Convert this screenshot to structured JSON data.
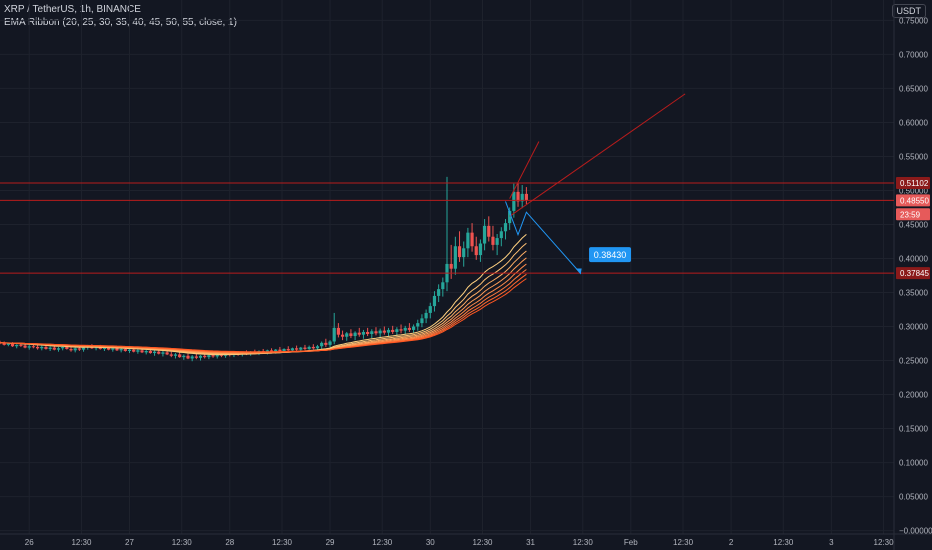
{
  "header": {
    "symbol_line": "XRP / TetherUS, 1h, BINANCE",
    "indicator_line": "EMA Ribbon (20, 25, 30, 35, 40, 45, 50, 55, close, 1)"
  },
  "currency_badge": "USDT",
  "colors": {
    "background": "#131722",
    "grid": "#1e222d",
    "axis_text": "#b2b5be",
    "up_candle": "#26a69a",
    "down_candle": "#ef5350",
    "ribbon_light": "#ffd180",
    "ribbon_dark": "#ff5722",
    "hline": "#b71c1c",
    "projection": "#2196f3",
    "label_red": "#8b1a1a",
    "label_price": "#e65a5a"
  },
  "chart_data": {
    "type": "candlestick",
    "title": "XRP / TetherUS, 1h, BINANCE",
    "y_axis": {
      "ticks": [
        0.75,
        0.7,
        0.65,
        0.6,
        0.55,
        0.5,
        0.45,
        0.4,
        0.35,
        0.3,
        0.25,
        0.2,
        0.15,
        0.1,
        0.05,
        0.0
      ],
      "tick_labels": [
        "0.75000",
        "0.70000",
        "0.65000",
        "0.60000",
        "0.55000",
        "0.50000",
        "0.45000",
        "0.40000",
        "0.35000",
        "0.30000",
        "0.25000",
        "0.20000",
        "0.15000",
        "0.10000",
        "0.05000",
        "−0.00000"
      ],
      "range": [
        -0.005,
        0.78
      ]
    },
    "x_axis": {
      "labels": [
        "26",
        "12:30",
        "27",
        "12:30",
        "28",
        "12:30",
        "29",
        "12:30",
        "30",
        "12:30",
        "31",
        "12:30",
        "Feb",
        "12:30",
        "2",
        "12:30",
        "3",
        "12:30"
      ],
      "hours": [
        0,
        12.5,
        24,
        36.5,
        48,
        60.5,
        72,
        84.5,
        96,
        108.5,
        120,
        132.5,
        144,
        156.5,
        168,
        180.5,
        192,
        204.5
      ],
      "range_hours": [
        -7,
        207
      ]
    },
    "candles_compact": {
      "start_hour": -7,
      "step_hours": 1,
      "comment_free_ohlc": true,
      "ohlc": [
        [
          0.277,
          0.279,
          0.274,
          0.276
        ],
        [
          0.276,
          0.278,
          0.272,
          0.273
        ],
        [
          0.273,
          0.276,
          0.271,
          0.275
        ],
        [
          0.275,
          0.277,
          0.27,
          0.271
        ],
        [
          0.271,
          0.274,
          0.268,
          0.273
        ],
        [
          0.273,
          0.276,
          0.27,
          0.272
        ],
        [
          0.272,
          0.275,
          0.268,
          0.269
        ],
        [
          0.269,
          0.273,
          0.266,
          0.271
        ],
        [
          0.271,
          0.274,
          0.268,
          0.27
        ],
        [
          0.27,
          0.273,
          0.266,
          0.268
        ],
        [
          0.268,
          0.272,
          0.265,
          0.27
        ],
        [
          0.27,
          0.273,
          0.266,
          0.267
        ],
        [
          0.267,
          0.271,
          0.264,
          0.269
        ],
        [
          0.269,
          0.272,
          0.265,
          0.266
        ],
        [
          0.266,
          0.27,
          0.263,
          0.268
        ],
        [
          0.268,
          0.272,
          0.265,
          0.27
        ],
        [
          0.27,
          0.273,
          0.266,
          0.267
        ],
        [
          0.267,
          0.271,
          0.263,
          0.265
        ],
        [
          0.265,
          0.269,
          0.262,
          0.268
        ],
        [
          0.268,
          0.271,
          0.264,
          0.266
        ],
        [
          0.266,
          0.27,
          0.263,
          0.269
        ],
        [
          0.269,
          0.273,
          0.266,
          0.271
        ],
        [
          0.271,
          0.274,
          0.267,
          0.268
        ],
        [
          0.268,
          0.272,
          0.265,
          0.27
        ],
        [
          0.27,
          0.273,
          0.266,
          0.267
        ],
        [
          0.267,
          0.271,
          0.264,
          0.269
        ],
        [
          0.269,
          0.272,
          0.265,
          0.266
        ],
        [
          0.266,
          0.27,
          0.263,
          0.268
        ],
        [
          0.268,
          0.271,
          0.264,
          0.265
        ],
        [
          0.265,
          0.269,
          0.262,
          0.267
        ],
        [
          0.267,
          0.27,
          0.263,
          0.264
        ],
        [
          0.264,
          0.268,
          0.261,
          0.266
        ],
        [
          0.266,
          0.269,
          0.262,
          0.263
        ],
        [
          0.263,
          0.267,
          0.26,
          0.265
        ],
        [
          0.265,
          0.268,
          0.261,
          0.262
        ],
        [
          0.262,
          0.266,
          0.259,
          0.264
        ],
        [
          0.264,
          0.267,
          0.26,
          0.261
        ],
        [
          0.261,
          0.265,
          0.257,
          0.263
        ],
        [
          0.263,
          0.266,
          0.259,
          0.26
        ],
        [
          0.26,
          0.264,
          0.256,
          0.262
        ],
        [
          0.262,
          0.265,
          0.258,
          0.259
        ],
        [
          0.259,
          0.263,
          0.255,
          0.257
        ],
        [
          0.257,
          0.261,
          0.253,
          0.259
        ],
        [
          0.259,
          0.262,
          0.254,
          0.255
        ],
        [
          0.255,
          0.259,
          0.251,
          0.257
        ],
        [
          0.257,
          0.26,
          0.252,
          0.253
        ],
        [
          0.253,
          0.258,
          0.249,
          0.256
        ],
        [
          0.256,
          0.26,
          0.252,
          0.254
        ],
        [
          0.254,
          0.258,
          0.25,
          0.257
        ],
        [
          0.257,
          0.261,
          0.253,
          0.255
        ],
        [
          0.255,
          0.259,
          0.252,
          0.258
        ],
        [
          0.258,
          0.261,
          0.254,
          0.256
        ],
        [
          0.256,
          0.26,
          0.253,
          0.259
        ],
        [
          0.259,
          0.262,
          0.255,
          0.257
        ],
        [
          0.257,
          0.261,
          0.254,
          0.26
        ],
        [
          0.26,
          0.263,
          0.256,
          0.258
        ],
        [
          0.258,
          0.262,
          0.255,
          0.261
        ],
        [
          0.261,
          0.264,
          0.257,
          0.259
        ],
        [
          0.259,
          0.263,
          0.256,
          0.262
        ],
        [
          0.262,
          0.265,
          0.258,
          0.26
        ],
        [
          0.26,
          0.264,
          0.257,
          0.263
        ],
        [
          0.263,
          0.266,
          0.259,
          0.261
        ],
        [
          0.261,
          0.265,
          0.258,
          0.264
        ],
        [
          0.264,
          0.267,
          0.26,
          0.262
        ],
        [
          0.262,
          0.266,
          0.259,
          0.265
        ],
        [
          0.265,
          0.268,
          0.261,
          0.263
        ],
        [
          0.263,
          0.267,
          0.26,
          0.266
        ],
        [
          0.266,
          0.27,
          0.262,
          0.264
        ],
        [
          0.264,
          0.268,
          0.261,
          0.267
        ],
        [
          0.267,
          0.271,
          0.263,
          0.265
        ],
        [
          0.265,
          0.269,
          0.262,
          0.268
        ],
        [
          0.268,
          0.272,
          0.264,
          0.266
        ],
        [
          0.266,
          0.27,
          0.263,
          0.269
        ],
        [
          0.269,
          0.273,
          0.265,
          0.267
        ],
        [
          0.267,
          0.272,
          0.264,
          0.27
        ],
        [
          0.27,
          0.274,
          0.266,
          0.268
        ],
        [
          0.268,
          0.273,
          0.265,
          0.271
        ],
        [
          0.271,
          0.278,
          0.267,
          0.276
        ],
        [
          0.276,
          0.282,
          0.27,
          0.273
        ],
        [
          0.273,
          0.28,
          0.269,
          0.278
        ],
        [
          0.278,
          0.32,
          0.274,
          0.298
        ],
        [
          0.298,
          0.305,
          0.284,
          0.288
        ],
        [
          0.288,
          0.294,
          0.28,
          0.285
        ],
        [
          0.285,
          0.292,
          0.279,
          0.29
        ],
        [
          0.29,
          0.296,
          0.283,
          0.286
        ],
        [
          0.286,
          0.293,
          0.28,
          0.291
        ],
        [
          0.291,
          0.298,
          0.285,
          0.288
        ],
        [
          0.288,
          0.295,
          0.282,
          0.292
        ],
        [
          0.292,
          0.298,
          0.286,
          0.289
        ],
        [
          0.289,
          0.296,
          0.283,
          0.293
        ],
        [
          0.293,
          0.299,
          0.287,
          0.29
        ],
        [
          0.29,
          0.297,
          0.284,
          0.294
        ],
        [
          0.294,
          0.3,
          0.288,
          0.291
        ],
        [
          0.291,
          0.298,
          0.285,
          0.295
        ],
        [
          0.295,
          0.301,
          0.289,
          0.292
        ],
        [
          0.292,
          0.299,
          0.286,
          0.296
        ],
        [
          0.296,
          0.303,
          0.29,
          0.294
        ],
        [
          0.294,
          0.301,
          0.288,
          0.298
        ],
        [
          0.298,
          0.305,
          0.292,
          0.295
        ],
        [
          0.295,
          0.303,
          0.29,
          0.3
        ],
        [
          0.3,
          0.31,
          0.294,
          0.305
        ],
        [
          0.305,
          0.318,
          0.299,
          0.312
        ],
        [
          0.312,
          0.325,
          0.305,
          0.32
        ],
        [
          0.32,
          0.335,
          0.312,
          0.33
        ],
        [
          0.33,
          0.352,
          0.322,
          0.345
        ],
        [
          0.345,
          0.362,
          0.336,
          0.355
        ],
        [
          0.355,
          0.372,
          0.344,
          0.365
        ],
        [
          0.365,
          0.52,
          0.352,
          0.392
        ],
        [
          0.392,
          0.42,
          0.37,
          0.385
        ],
        [
          0.385,
          0.432,
          0.376,
          0.418
        ],
        [
          0.418,
          0.44,
          0.395,
          0.402
        ],
        [
          0.402,
          0.425,
          0.388,
          0.415
        ],
        [
          0.415,
          0.445,
          0.402,
          0.438
        ],
        [
          0.438,
          0.452,
          0.41,
          0.418
        ],
        [
          0.418,
          0.432,
          0.398,
          0.405
        ],
        [
          0.405,
          0.428,
          0.395,
          0.422
        ],
        [
          0.422,
          0.458,
          0.412,
          0.448
        ],
        [
          0.448,
          0.462,
          0.425,
          0.432
        ],
        [
          0.432,
          0.448,
          0.412,
          0.42
        ],
        [
          0.42,
          0.436,
          0.405,
          0.43
        ],
        [
          0.43,
          0.446,
          0.418,
          0.44
        ],
        [
          0.44,
          0.458,
          0.428,
          0.452
        ],
        [
          0.452,
          0.475,
          0.442,
          0.47
        ],
        [
          0.47,
          0.51,
          0.46,
          0.498
        ],
        [
          0.498,
          0.512,
          0.476,
          0.484
        ],
        [
          0.484,
          0.508,
          0.474,
          0.495
        ],
        [
          0.495,
          0.505,
          0.48,
          0.486
        ]
      ]
    },
    "ema_ribbon": {
      "periods": [
        20,
        25,
        30,
        35,
        40,
        45,
        50,
        55
      ],
      "source": "close"
    },
    "horizontal_lines": [
      {
        "price": 0.51102,
        "label": "0.51102"
      },
      {
        "price": 0.4855,
        "label": "0.48550"
      },
      {
        "price": 0.37845,
        "label": "0.37845"
      }
    ],
    "axis_labels": [
      {
        "price": 0.51102,
        "text": "0.51102",
        "kind": "hline"
      },
      {
        "price": 0.4855,
        "text": "0.48550",
        "kind": "last_price"
      },
      {
        "price": 0.465,
        "text": "23:59",
        "kind": "countdown"
      },
      {
        "price": 0.37845,
        "text": "0.37845",
        "kind": "hline"
      }
    ],
    "trendlines": [
      {
        "from": [
          115,
          0.488
        ],
        "to": [
          122,
          0.572
        ]
      },
      {
        "from": [
          115,
          0.462
        ],
        "to": [
          157,
          0.642
        ]
      }
    ],
    "projection_path": [
      [
        114,
        0.484
      ],
      [
        117,
        0.435
      ],
      [
        119,
        0.468
      ],
      [
        132,
        0.378
      ]
    ],
    "projection_label": {
      "text": "0.38430",
      "at": [
        134,
        0.405
      ]
    }
  }
}
